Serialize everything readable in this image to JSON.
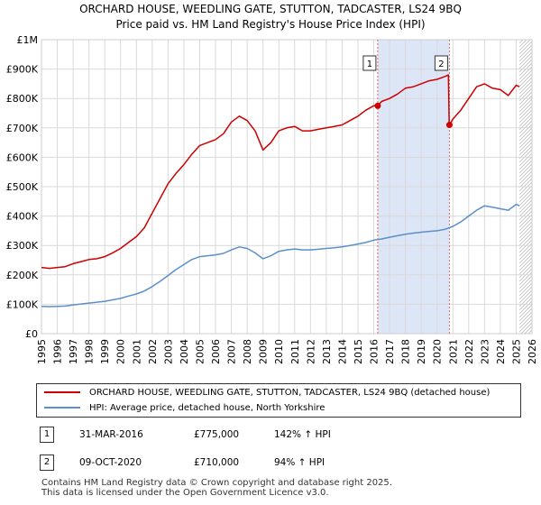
{
  "chart_data": {
    "type": "line",
    "title": "ORCHARD HOUSE, WEEDLING GATE, STUTTON, TADCASTER, LS24 9BQ",
    "subtitle": "Price paid vs. HM Land Registry's House Price Index (HPI)",
    "xlabel": "",
    "ylabel": "",
    "xlim": [
      1995,
      2026
    ],
    "ylim": [
      0,
      1000000
    ],
    "x_ticks": [
      "1995",
      "1996",
      "1997",
      "1998",
      "1999",
      "2000",
      "2001",
      "2002",
      "2003",
      "2004",
      "2005",
      "2006",
      "2007",
      "2008",
      "2009",
      "2010",
      "2011",
      "2012",
      "2013",
      "2014",
      "2015",
      "2016",
      "2017",
      "2018",
      "2019",
      "2020",
      "2021",
      "2022",
      "2023",
      "2024",
      "2025",
      "2026"
    ],
    "y_ticks": [
      "£0",
      "£100K",
      "£200K",
      "£300K",
      "£400K",
      "£500K",
      "£600K",
      "£700K",
      "£800K",
      "£900K",
      "£1M"
    ],
    "grid": true,
    "series": [
      {
        "name": "ORCHARD HOUSE, WEEDLING GATE, STUTTON, TADCASTER, LS24 9BQ (detached house)",
        "color": "#cc0000",
        "x": [
          1995.0,
          1995.5,
          1996.0,
          1996.5,
          1997.0,
          1997.5,
          1998.0,
          1998.5,
          1999.0,
          1999.5,
          2000.0,
          2000.5,
          2001.0,
          2001.5,
          2002.0,
          2002.5,
          2003.0,
          2003.5,
          2004.0,
          2004.5,
          2005.0,
          2005.5,
          2006.0,
          2006.5,
          2007.0,
          2007.5,
          2008.0,
          2008.5,
          2009.0,
          2009.5,
          2010.0,
          2010.5,
          2011.0,
          2011.5,
          2012.0,
          2012.5,
          2013.0,
          2013.5,
          2014.0,
          2014.5,
          2015.0,
          2015.5,
          2016.0,
          2016.25,
          2016.5,
          2017.0,
          2017.5,
          2018.0,
          2018.5,
          2019.0,
          2019.5,
          2020.0,
          2020.5,
          2020.72,
          2020.77,
          2020.8,
          2021.0,
          2021.5,
          2022.0,
          2022.5,
          2023.0,
          2023.5,
          2024.0,
          2024.5,
          2025.0,
          2025.2
        ],
        "values": [
          225000,
          222000,
          225000,
          228000,
          238000,
          245000,
          252000,
          255000,
          262000,
          275000,
          290000,
          310000,
          330000,
          360000,
          410000,
          460000,
          510000,
          545000,
          575000,
          610000,
          640000,
          650000,
          660000,
          680000,
          720000,
          740000,
          725000,
          690000,
          625000,
          650000,
          690000,
          700000,
          705000,
          690000,
          690000,
          695000,
          700000,
          705000,
          710000,
          725000,
          740000,
          760000,
          775000,
          775000,
          790000,
          800000,
          815000,
          835000,
          840000,
          850000,
          860000,
          865000,
          875000,
          880000,
          710000,
          710000,
          730000,
          760000,
          800000,
          840000,
          850000,
          835000,
          830000,
          810000,
          845000,
          840000
        ]
      },
      {
        "name": "HPI: Average price, detached house, North Yorkshire",
        "color": "#5b8fc9",
        "x": [
          1995.0,
          1995.5,
          1996.0,
          1996.5,
          1997.0,
          1997.5,
          1998.0,
          1998.5,
          1999.0,
          1999.5,
          2000.0,
          2000.5,
          2001.0,
          2001.5,
          2002.0,
          2002.5,
          2003.0,
          2003.5,
          2004.0,
          2004.5,
          2005.0,
          2005.5,
          2006.0,
          2006.5,
          2007.0,
          2007.5,
          2008.0,
          2008.5,
          2009.0,
          2009.5,
          2010.0,
          2010.5,
          2011.0,
          2011.5,
          2012.0,
          2012.5,
          2013.0,
          2013.5,
          2014.0,
          2014.5,
          2015.0,
          2015.5,
          2016.0,
          2016.5,
          2017.0,
          2017.5,
          2018.0,
          2018.5,
          2019.0,
          2019.5,
          2020.0,
          2020.5,
          2021.0,
          2021.5,
          2022.0,
          2022.5,
          2023.0,
          2023.5,
          2024.0,
          2024.5,
          2025.0,
          2025.2
        ],
        "values": [
          93000,
          92000,
          93000,
          94000,
          98000,
          101000,
          104000,
          107000,
          110000,
          115000,
          120000,
          128000,
          135000,
          145000,
          160000,
          178000,
          198000,
          218000,
          235000,
          252000,
          262000,
          265000,
          268000,
          273000,
          285000,
          295000,
          290000,
          275000,
          255000,
          265000,
          280000,
          285000,
          288000,
          285000,
          285000,
          287000,
          290000,
          292000,
          295000,
          300000,
          305000,
          310000,
          318000,
          322000,
          328000,
          333000,
          338000,
          342000,
          345000,
          348000,
          350000,
          355000,
          365000,
          380000,
          400000,
          420000,
          435000,
          430000,
          425000,
          420000,
          440000,
          435000
        ]
      }
    ],
    "sales": [
      {
        "label": "1",
        "x": 2016.25,
        "value": 775000,
        "date": "31-MAR-2016",
        "price": "£775,000",
        "hpi": "142% ↑ HPI"
      },
      {
        "label": "2",
        "x": 2020.78,
        "value": 710000,
        "date": "09-OCT-2020",
        "price": "£710,000",
        "hpi": "94% ↑ HPI"
      }
    ]
  },
  "legend": {
    "red_label": "ORCHARD HOUSE, WEEDLING GATE, STUTTON, TADCASTER, LS24 9BQ (detached house)",
    "blue_label": "HPI: Average price, detached house, North Yorkshire"
  },
  "footer": {
    "line1": "Contains HM Land Registry data © Crown copyright and database right 2025.",
    "line2": "This data is licensed under the Open Government Licence v3.0."
  },
  "colors": {
    "price_line": "#cc0000",
    "hpi_line": "#5b8fc9",
    "shade": "#dde6f7",
    "grid": "#d9d9d9",
    "vline": "#e06666"
  }
}
